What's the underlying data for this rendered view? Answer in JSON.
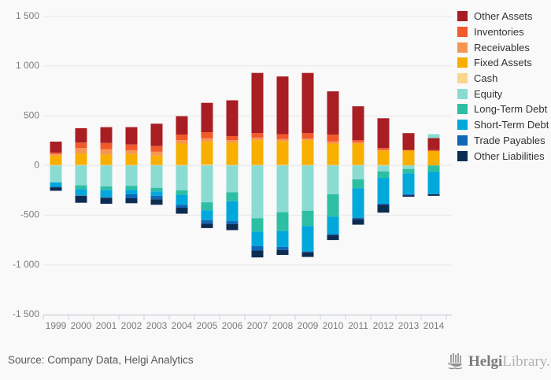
{
  "page": {
    "background": "#F9F9F9"
  },
  "footer": {
    "source": "Source: Company Data, Helgi Analytics",
    "logo": {
      "icon": "ship-icon",
      "brand_bold": "Helgi",
      "brand_light": "Library."
    }
  },
  "chart_data": {
    "type": "bar",
    "stacked": true,
    "title": "",
    "xlabel": "",
    "ylabel": "",
    "grid": true,
    "legend_position": "right",
    "ylim": [
      -1500,
      1500
    ],
    "yticks": [
      {
        "label": "1 500",
        "value": 1500
      },
      {
        "label": "1 000",
        "value": 1000
      },
      {
        "label": "500",
        "value": 500
      },
      {
        "label": "0",
        "value": 0
      },
      {
        "label": "-500",
        "value": -500
      },
      {
        "label": "-1 000",
        "value": -1000
      },
      {
        "label": "-1 500",
        "value": -1500
      }
    ],
    "categories": [
      "1999",
      "2000",
      "2001",
      "2002",
      "2003",
      "2004",
      "2005",
      "2006",
      "2007",
      "2008",
      "2009",
      "2010",
      "2011",
      "2012",
      "2013",
      "2014"
    ],
    "stack_order": [
      "Cash",
      "Fixed Assets",
      "Receivables",
      "Inventories",
      "Other Assets",
      "Equity",
      "Long-Term Debt",
      "Short-Term Debt",
      "Trade Payables",
      "Other Liabilities"
    ],
    "series": [
      {
        "name": "Other Assets",
        "color": "#A81E22",
        "values": [
          110,
          145,
          160,
          175,
          225,
          185,
          295,
          360,
          605,
          580,
          605,
          435,
          340,
          300,
          170,
          120
        ]
      },
      {
        "name": "Inventories",
        "color": "#F2592B",
        "values": [
          15,
          55,
          60,
          55,
          55,
          55,
          60,
          40,
          45,
          50,
          55,
          70,
          20,
          20,
          5,
          10
        ]
      },
      {
        "name": "Receivables",
        "color": "#F79552",
        "values": [
          15,
          55,
          55,
          40,
          40,
          35,
          35,
          25,
          25,
          20,
          15,
          20,
          15,
          5,
          0,
          0
        ]
      },
      {
        "name": "Fixed Assets",
        "color": "#F8AF00",
        "values": [
          95,
          115,
          105,
          110,
          95,
          215,
          230,
          225,
          250,
          240,
          250,
          215,
          215,
          145,
          150,
          145
        ]
      },
      {
        "name": "Cash",
        "color": "#FAD58C",
        "values": [
          5,
          5,
          5,
          5,
          5,
          5,
          10,
          5,
          5,
          5,
          5,
          5,
          5,
          5,
          0,
          0
        ]
      },
      {
        "name": "Equity",
        "color": "#8ADCD2",
        "values": [
          -170,
          -200,
          -210,
          -205,
          -225,
          -250,
          -370,
          -270,
          -530,
          -470,
          -455,
          -290,
          -140,
          -60,
          -35,
          40
        ]
      },
      {
        "name": "Long-Term Debt",
        "color": "#2DBFA3",
        "values": [
          0,
          -40,
          -35,
          -40,
          -35,
          -45,
          -80,
          -90,
          -135,
          -190,
          -155,
          -225,
          -90,
          -65,
          -45,
          -65
        ]
      },
      {
        "name": "Short-Term Debt",
        "color": "#00A8DC",
        "values": [
          -45,
          -60,
          -75,
          -45,
          -45,
          -100,
          -100,
          -200,
          -145,
          -160,
          -255,
          -175,
          -295,
          -260,
          -210,
          -220
        ]
      },
      {
        "name": "Trade Payables",
        "color": "#1166B5",
        "values": [
          -5,
          -5,
          -5,
          -40,
          -35,
          -30,
          -35,
          -30,
          -45,
          -30,
          -5,
          -10,
          -15,
          -10,
          -10,
          -5
        ]
      },
      {
        "name": "Other Liabilities",
        "color": "#0D2C52",
        "values": [
          -35,
          -70,
          -60,
          -50,
          -55,
          -60,
          -45,
          -60,
          -70,
          -50,
          -50,
          -50,
          -55,
          -80,
          -15,
          -15
        ]
      }
    ]
  }
}
